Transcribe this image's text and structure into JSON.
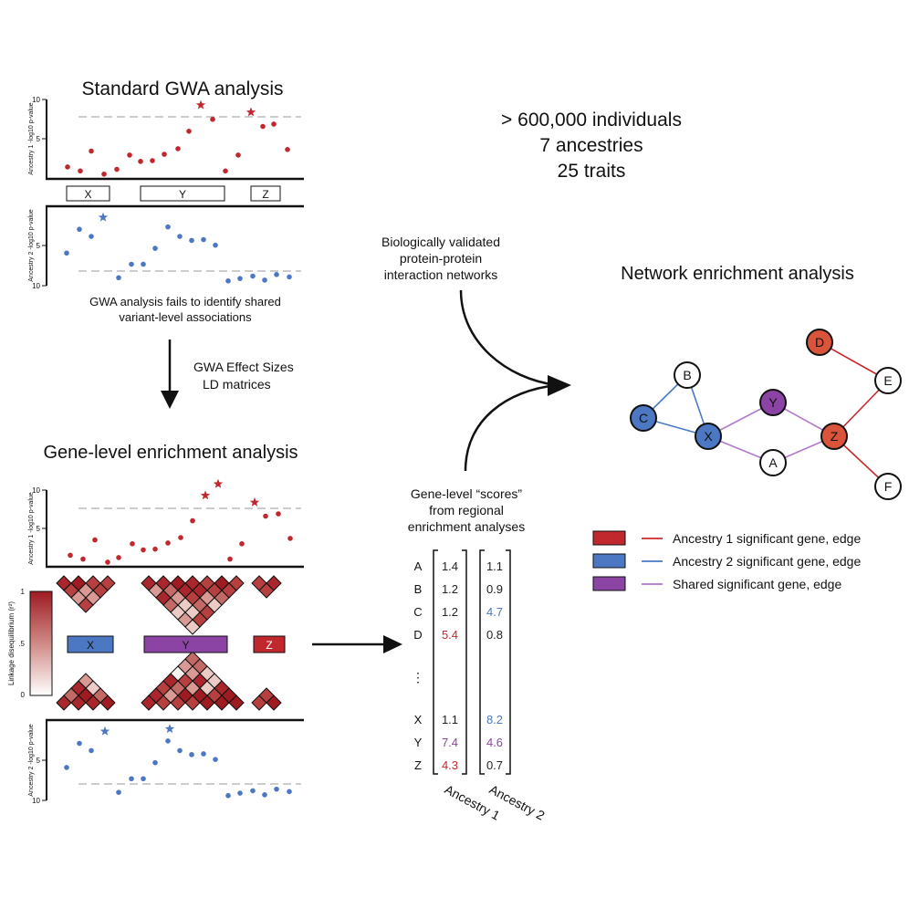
{
  "colors": {
    "ancestry1": "#c0282d",
    "ancestry2": "#4c77c2",
    "shared": "#8b44a3",
    "orange": "#d9543a",
    "edge_red": "#c9282b",
    "edge_blue": "#4a7bc4",
    "edge_purple": "#b17ac8",
    "threshold": "#999999"
  },
  "standard_gwa": {
    "title": "Standard GWA analysis",
    "ylabel_top": "Ancestry 1 -log10 p-value",
    "ylabel_bottom": "Ancestry 2 -log10 p-value",
    "tick_10": "10",
    "tick_5": "5",
    "gene_labels": [
      "X",
      "Y",
      "Z"
    ],
    "caption_line1": "GWA analysis fails to identify shared",
    "caption_line2": "variant-level associations",
    "top_points": [
      1.5,
      1.0,
      3.5,
      0.6,
      1.2,
      3.0,
      2.2,
      2.3,
      3.1,
      3.8,
      6.0,
      7.5,
      1.0,
      3.0,
      6.6,
      6.9,
      3.7
    ],
    "top_stars": [
      9.3,
      8.4
    ],
    "bottom_points": [
      5.9,
      2.9,
      3.8,
      9.0,
      7.3,
      7.3,
      5.3,
      2.6,
      3.8,
      4.3,
      4.2,
      4.9,
      9.4,
      9.1,
      8.8,
      9.3,
      8.6,
      8.9
    ],
    "bottom_stars": [
      1.4
    ]
  },
  "arrow_between": {
    "line1": "GWA Effect Sizes",
    "line2": "LD matrices"
  },
  "gene_level": {
    "title": "Gene-level enrichment analysis",
    "ylabel_top": "Ancestry 1 -log10 p-value",
    "ylabel_bottom": "Ancestry 2 -log10 p-value",
    "tick_10": "10",
    "tick_5": "5",
    "ld_label": "Linkage disequilibrium (r²)",
    "ld_ticks": [
      "1",
      ".5",
      "0"
    ],
    "gene_labels": [
      "X",
      "Y",
      "Z"
    ],
    "top_points": [
      1.5,
      1.0,
      3.5,
      0.6,
      1.2,
      3.0,
      2.2,
      2.3,
      3.1,
      3.8,
      6.0,
      1.0,
      3.0,
      6.6,
      6.9,
      3.7
    ],
    "top_stars": [
      9.3,
      10.8,
      8.4
    ],
    "bottom_points": [
      5.9,
      2.9,
      3.8,
      9.0,
      7.3,
      7.3,
      5.3,
      2.6,
      3.8,
      4.3,
      4.2,
      4.9,
      9.4,
      9.1,
      8.8,
      9.3,
      8.6,
      8.9
    ],
    "bottom_stars": [
      1.4,
      1.1
    ]
  },
  "study": {
    "line1": "> 600,000 individuals",
    "line2": "7 ancestries",
    "line3": "25 traits"
  },
  "ppi": {
    "line1": "Biologically validated",
    "line2": "protein-protein",
    "line3": "interaction networks"
  },
  "scores": {
    "caption_line1": "Gene-level “scores”",
    "caption_line2": "from regional",
    "caption_line3": "enrichment analyses",
    "ellipsis": "⋮",
    "col1_label": "Ancestry 1",
    "col2_label": "Ancestry 2",
    "rows": [
      {
        "gene": "A",
        "a1": "1.4",
        "a1_color": "#222222",
        "a2": "1.1",
        "a2_color": "#222222"
      },
      {
        "gene": "B",
        "a1": "1.2",
        "a1_color": "#222222",
        "a2": "0.9",
        "a2_color": "#222222"
      },
      {
        "gene": "C",
        "a1": "1.2",
        "a1_color": "#222222",
        "a2": "4.7",
        "a2_color": "#4c77c2"
      },
      {
        "gene": "D",
        "a1": "5.4",
        "a1_color": "#c0282d",
        "a2": "0.8",
        "a2_color": "#222222"
      },
      {
        "gene": "X",
        "a1": "1.1",
        "a1_color": "#222222",
        "a2": "8.2",
        "a2_color": "#4c77c2"
      },
      {
        "gene": "Y",
        "a1": "7.4",
        "a1_color": "#8b44a3",
        "a2": "4.6",
        "a2_color": "#8b44a3"
      },
      {
        "gene": "Z",
        "a1": "4.3",
        "a1_color": "#c0282d",
        "a2": "0.7",
        "a2_color": "#222222"
      }
    ]
  },
  "network": {
    "title": "Network enrichment analysis",
    "nodes": [
      {
        "id": "D",
        "fill": "#d9543a"
      },
      {
        "id": "B",
        "fill": "#ffffff"
      },
      {
        "id": "E",
        "fill": "#ffffff"
      },
      {
        "id": "Y",
        "fill": "#8b44a3"
      },
      {
        "id": "C",
        "fill": "#4c77c2"
      },
      {
        "id": "X",
        "fill": "#4c77c2"
      },
      {
        "id": "Z",
        "fill": "#d9543a"
      },
      {
        "id": "A",
        "fill": "#ffffff"
      },
      {
        "id": "F",
        "fill": "#ffffff"
      }
    ],
    "edges": [
      {
        "from": "D",
        "to": "E",
        "color": "#c9282b"
      },
      {
        "from": "E",
        "to": "Z",
        "color": "#c9282b"
      },
      {
        "from": "Z",
        "to": "F",
        "color": "#c9282b"
      },
      {
        "from": "B",
        "to": "C",
        "color": "#4a7bc4"
      },
      {
        "from": "B",
        "to": "X",
        "color": "#4a7bc4"
      },
      {
        "from": "C",
        "to": "X",
        "color": "#4a7bc4"
      },
      {
        "from": "X",
        "to": "Y",
        "color": "#b17ac8"
      },
      {
        "from": "Y",
        "to": "Z",
        "color": "#b17ac8"
      },
      {
        "from": "X",
        "to": "A",
        "color": "#b17ac8"
      },
      {
        "from": "A",
        "to": "Z",
        "color": "#b17ac8"
      }
    ]
  },
  "legend": [
    {
      "label": "Ancestry 1 significant gene, edge",
      "fill": "#c0282d",
      "line": "#c9282b"
    },
    {
      "label": "Ancestry 2 significant gene, edge",
      "fill": "#4c77c2",
      "line": "#4a7bc4"
    },
    {
      "label": "Shared significant gene, edge",
      "fill": "#8b44a3",
      "line": "#b17ac8"
    }
  ]
}
